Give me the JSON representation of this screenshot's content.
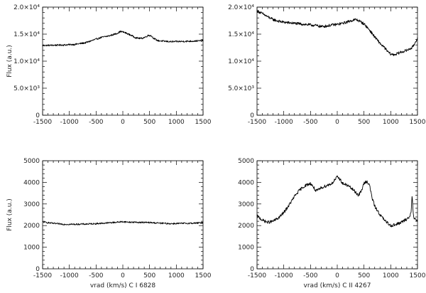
{
  "chart_data": [
    {
      "type": "line",
      "xlabel": "",
      "ylabel": "Flux (a.u.)",
      "xlim": [
        -1500,
        1500
      ],
      "ylim": [
        0,
        20000
      ],
      "xticks": [
        -1500,
        -1000,
        -500,
        0,
        500,
        1000,
        1500
      ],
      "xtick_labels": [
        "-1500",
        "-1000",
        "-500",
        "0",
        "500",
        "1000",
        "1500"
      ],
      "yticks": [
        0,
        5000,
        10000,
        15000,
        20000
      ],
      "ytick_labels": [
        "0",
        "5.0×10³",
        "1.0×10⁴",
        "1.5×10⁴",
        "2.0×10⁴"
      ],
      "noise": 150,
      "series": [
        {
          "x": [
            -1500,
            -1300,
            -1100,
            -900,
            -700,
            -550,
            -400,
            -250,
            -120,
            -40,
            0,
            60,
            150,
            250,
            350,
            430,
            480,
            530,
            580,
            650,
            750,
            900,
            1100,
            1300,
            1500
          ],
          "y": [
            12900,
            12950,
            13000,
            13100,
            13400,
            13900,
            14400,
            14700,
            15100,
            15500,
            15400,
            15200,
            14800,
            14300,
            14200,
            14500,
            14800,
            14700,
            14200,
            13800,
            13700,
            13600,
            13650,
            13700,
            13800
          ]
        }
      ]
    },
    {
      "type": "line",
      "xlabel": "",
      "ylabel": "",
      "xlim": [
        -1500,
        1500
      ],
      "ylim": [
        0,
        20000
      ],
      "xticks": [
        -1500,
        -1000,
        -500,
        0,
        500,
        1000,
        1500
      ],
      "xtick_labels": [
        "-1500",
        "-1000",
        "-500",
        "0",
        "500",
        "1000",
        "1500"
      ],
      "yticks": [
        0,
        5000,
        10000,
        15000,
        20000
      ],
      "ytick_labels": [
        "0",
        "5.0×10³",
        "1.0×10⁴",
        "1.5×10⁴",
        "2.0×10⁴"
      ],
      "noise": 250,
      "series": [
        {
          "x": [
            -1500,
            -1400,
            -1300,
            -1200,
            -1100,
            -1000,
            -900,
            -800,
            -700,
            -600,
            -500,
            -400,
            -300,
            -200,
            -100,
            0,
            100,
            200,
            300,
            350,
            400,
            500,
            600,
            700,
            800,
            900,
            950,
            1000,
            1050,
            1100,
            1200,
            1300,
            1400,
            1450,
            1500
          ],
          "y": [
            19300,
            18800,
            18200,
            17700,
            17400,
            17200,
            17100,
            17000,
            16900,
            16800,
            16700,
            16600,
            16400,
            16500,
            16700,
            16800,
            17000,
            17300,
            17600,
            17700,
            17500,
            16900,
            15800,
            14500,
            13300,
            12300,
            11700,
            11300,
            11200,
            11300,
            11700,
            12000,
            12500,
            13300,
            14300
          ]
        }
      ]
    },
    {
      "type": "line",
      "xlabel": "vrad (km/s) C I 6828",
      "ylabel": "Flux (a.u.)",
      "xlim": [
        -1500,
        1500
      ],
      "ylim": [
        0,
        5000
      ],
      "xticks": [
        -1500,
        -1000,
        -500,
        0,
        500,
        1000,
        1500
      ],
      "xtick_labels": [
        "-1500",
        "-1000",
        "-500",
        "0",
        "500",
        "1000",
        "1500"
      ],
      "yticks": [
        0,
        1000,
        2000,
        3000,
        4000,
        5000
      ],
      "ytick_labels": [
        "0",
        "1000",
        "2000",
        "3000",
        "4000",
        "5000"
      ],
      "noise": 35,
      "series": [
        {
          "x": [
            -1500,
            -1300,
            -1100,
            -900,
            -700,
            -500,
            -300,
            -100,
            0,
            100,
            300,
            500,
            700,
            900,
            1100,
            1300,
            1500
          ],
          "y": [
            2170,
            2100,
            2060,
            2060,
            2070,
            2090,
            2120,
            2160,
            2180,
            2160,
            2150,
            2140,
            2110,
            2090,
            2100,
            2110,
            2130
          ]
        }
      ]
    },
    {
      "type": "line",
      "xlabel": "vrad (km/s) C II 4267",
      "ylabel": "",
      "xlim": [
        -1500,
        1500
      ],
      "ylim": [
        0,
        5000
      ],
      "xticks": [
        -1500,
        -1000,
        -500,
        0,
        500,
        1000,
        1500
      ],
      "xtick_labels": [
        "-1500",
        "-1000",
        "-500",
        "0",
        "500",
        "1000",
        "1500"
      ],
      "yticks": [
        0,
        1000,
        2000,
        3000,
        4000,
        5000
      ],
      "ytick_labels": [
        "0",
        "1000",
        "2000",
        "3000",
        "4000",
        "5000"
      ],
      "noise": 70,
      "series": [
        {
          "x": [
            -1500,
            -1400,
            -1300,
            -1200,
            -1100,
            -1000,
            -900,
            -800,
            -700,
            -600,
            -500,
            -450,
            -400,
            -350,
            -300,
            -200,
            -100,
            0,
            50,
            100,
            200,
            300,
            400,
            450,
            500,
            550,
            600,
            650,
            700,
            800,
            900,
            1000,
            1100,
            1200,
            1300,
            1350,
            1380,
            1400,
            1420,
            1450,
            1500
          ],
          "y": [
            2450,
            2250,
            2150,
            2200,
            2350,
            2600,
            2950,
            3350,
            3650,
            3850,
            3950,
            3800,
            3600,
            3650,
            3750,
            3850,
            3950,
            4250,
            4150,
            3950,
            3850,
            3650,
            3400,
            3600,
            3950,
            4050,
            3900,
            3300,
            2900,
            2500,
            2200,
            2000,
            2050,
            2150,
            2300,
            2400,
            2600,
            3500,
            2500,
            2300,
            2200
          ]
        }
      ]
    }
  ]
}
